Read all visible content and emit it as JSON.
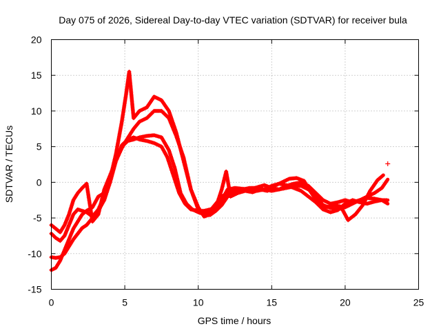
{
  "chart_data": {
    "type": "scatter",
    "title": "Day 075 of 2026, Sidereal Day-to-day VTEC variation (SDTVAR) for receiver bula",
    "xlabel": "GPS time / hours",
    "ylabel": "SDTVAR / TECUs",
    "xlim": [
      0,
      25
    ],
    "ylim": [
      -15,
      20
    ],
    "xticks": [
      0,
      5,
      10,
      15,
      20,
      25
    ],
    "yticks": [
      -15,
      -10,
      -5,
      0,
      5,
      10,
      15,
      20
    ],
    "grid": true,
    "marker": "+",
    "marker_color": "#ff0000",
    "series": [
      {
        "name": "track-1",
        "x": [
          0.0,
          0.3,
          0.6,
          0.9,
          1.2,
          1.5,
          1.8,
          2.1,
          2.4,
          2.8,
          3.2,
          3.6,
          4.0,
          4.4,
          4.8,
          5.2,
          5.6,
          6.0,
          6.5,
          7.0,
          7.5,
          8.0,
          8.4,
          8.8,
          9.2,
          9.6,
          10.0,
          10.4,
          10.8,
          11.2,
          11.6,
          12.0,
          12.5,
          13.0,
          13.5,
          14.0,
          14.5,
          15.0,
          15.5,
          16.0,
          16.5,
          17.0,
          17.5,
          18.0,
          18.5,
          19.0,
          19.5,
          20.0,
          20.5,
          21.0,
          21.5,
          22.0,
          22.5,
          22.9
        ],
        "y": [
          -10.5,
          -10.6,
          -10.5,
          -10.0,
          -9.0,
          -8.0,
          -7.2,
          -6.4,
          -6.0,
          -5.0,
          -4.0,
          -2.5,
          0.0,
          3.0,
          5.0,
          5.8,
          6.0,
          6.3,
          6.5,
          6.6,
          6.3,
          4.5,
          2.0,
          -1.5,
          -3.0,
          -3.8,
          -4.2,
          -4.5,
          -4.0,
          -3.0,
          -2.0,
          -1.5,
          -1.2,
          -1.0,
          -0.8,
          -0.8,
          -1.0,
          -1.2,
          -1.0,
          -0.5,
          -0.2,
          0.0,
          -0.5,
          -1.5,
          -2.5,
          -3.0,
          -2.8,
          -2.5,
          -2.8,
          -2.5,
          -2.2,
          -2.3,
          -2.5,
          -2.5
        ]
      },
      {
        "name": "track-2",
        "x": [
          0.0,
          0.3,
          0.6,
          0.9,
          1.2,
          1.5,
          1.8,
          2.1,
          2.4,
          2.8,
          3.2,
          3.6,
          4.0,
          4.4,
          4.8,
          5.2,
          5.6,
          6.0,
          6.5,
          7.0,
          7.5,
          7.9,
          8.3,
          8.7,
          9.1,
          9.5,
          10.0,
          10.4,
          10.8,
          11.2,
          11.6,
          12.0,
          12.5,
          13.0,
          13.5,
          14.0,
          14.5,
          15.0,
          15.5,
          16.0,
          16.5,
          17.0,
          17.5,
          18.0,
          18.5,
          19.0,
          19.5,
          20.0,
          20.5,
          21.0,
          21.5,
          22.0,
          22.5,
          22.9
        ],
        "y": [
          -7.2,
          -7.8,
          -8.2,
          -7.5,
          -6.0,
          -4.5,
          -3.8,
          -4.0,
          -4.2,
          -4.8,
          -3.8,
          -2.0,
          0.5,
          3.0,
          5.2,
          6.0,
          6.3,
          6.0,
          5.8,
          5.5,
          5.0,
          3.5,
          1.0,
          -1.5,
          -3.0,
          -3.8,
          -4.0,
          -4.0,
          -3.8,
          -3.5,
          -2.5,
          -1.0,
          -0.8,
          -0.9,
          -1.0,
          -0.7,
          -0.4,
          -0.8,
          -1.0,
          -0.8,
          -0.6,
          -0.5,
          -1.0,
          -2.0,
          -3.2,
          -3.6,
          -3.8,
          -3.5,
          -3.0,
          -2.5,
          -2.0,
          -1.5,
          -0.8,
          0.4
        ]
      },
      {
        "name": "track-3",
        "x": [
          0.0,
          0.3,
          0.6,
          0.9,
          1.2,
          1.5,
          1.8,
          2.1,
          2.4,
          2.8,
          3.2,
          3.6,
          4.0,
          4.4,
          4.8,
          5.1,
          5.3,
          5.6,
          6.0,
          6.5,
          7.0,
          7.5,
          8.0,
          8.5,
          9.0,
          9.5,
          10.0,
          10.4,
          10.8,
          11.2,
          11.6,
          11.9,
          12.2,
          12.7,
          13.2,
          13.7,
          14.2,
          14.7,
          15.2,
          15.7,
          16.2,
          16.7,
          17.2,
          17.7,
          18.2,
          18.7,
          19.2,
          19.7,
          20.2,
          20.7,
          21.2,
          21.7,
          22.2,
          22.6
        ],
        "y": [
          -12.3,
          -12.0,
          -11.0,
          -9.5,
          -8.0,
          -6.5,
          -5.5,
          -4.5,
          -4.0,
          -3.5,
          -2.0,
          -1.5,
          0.5,
          4.0,
          8.5,
          12.5,
          15.5,
          9.0,
          10.0,
          10.5,
          12.0,
          11.5,
          10.0,
          7.0,
          3.0,
          -1.0,
          -3.5,
          -4.8,
          -4.5,
          -3.5,
          -1.0,
          1.5,
          -2.0,
          -1.5,
          -1.2,
          -1.4,
          -1.0,
          -1.2,
          -0.5,
          0.0,
          0.5,
          0.6,
          0.2,
          -1.5,
          -3.0,
          -3.5,
          -3.2,
          -3.4,
          -5.3,
          -4.5,
          -3.2,
          -1.2,
          0.3,
          1.0
        ]
      },
      {
        "name": "track-4",
        "x": [
          0.0,
          0.3,
          0.6,
          0.9,
          1.2,
          1.5,
          1.8,
          2.1,
          2.4,
          2.8,
          3.2,
          3.6,
          4.0,
          4.4,
          4.8,
          5.2,
          5.6,
          6.0,
          6.5,
          7.0,
          7.5,
          8.0,
          8.5,
          9.0,
          9.5,
          10.0,
          10.4,
          10.8,
          11.2,
          11.6,
          12.0,
          12.5,
          13.0,
          13.5,
          14.0,
          14.5,
          15.0,
          15.5,
          16.0,
          16.5,
          17.0,
          17.5,
          18.0,
          18.5,
          19.0,
          19.5,
          20.0,
          20.5,
          21.0,
          21.5,
          22.0,
          22.5,
          22.9
        ],
        "y": [
          -6.0,
          -6.5,
          -7.0,
          -6.0,
          -4.5,
          -2.5,
          -1.5,
          -0.8,
          -0.2,
          -5.5,
          -4.5,
          -1.0,
          1.0,
          3.0,
          4.8,
          6.2,
          7.5,
          8.5,
          9.0,
          10.0,
          10.0,
          9.0,
          6.5,
          3.5,
          -1.0,
          -3.8,
          -4.5,
          -4.6,
          -4.0,
          -3.2,
          -2.0,
          -1.5,
          -1.0,
          -1.0,
          -1.2,
          -1.0,
          -0.5,
          -0.2,
          -0.4,
          -0.8,
          -1.2,
          -2.0,
          -2.8,
          -3.8,
          -4.2,
          -3.9,
          -3.0,
          -2.5,
          -2.8,
          -3.0,
          -2.7,
          -2.5,
          -3.0
        ]
      }
    ],
    "isolated_points": [
      {
        "x": 22.9,
        "y": 2.6
      }
    ]
  }
}
